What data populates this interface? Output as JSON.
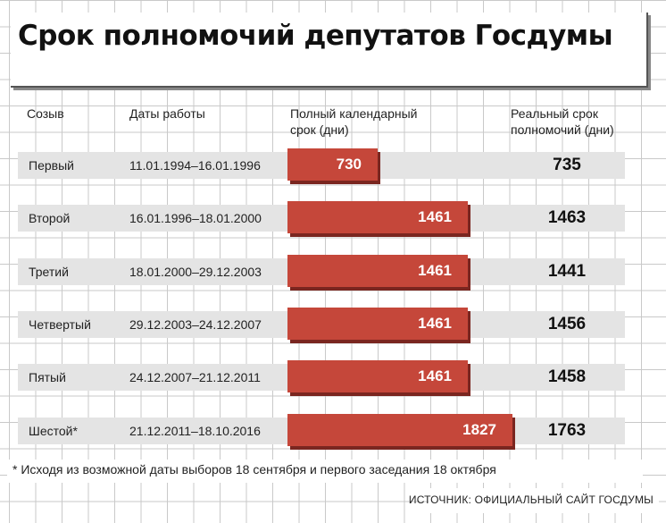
{
  "title": "Срок полномочий депутатов Госдумы",
  "headers": {
    "convocation": "Созыв",
    "dates": "Даты работы",
    "calendar_line1": "Полный календарный",
    "calendar_line2": "срок (дни)",
    "real_line1": "Реальный срок",
    "real_line2": "полномочий (дни)"
  },
  "rows": [
    {
      "convocation": "Первый",
      "dates": "11.01.1994–16.01.1996",
      "calendar_label": "730",
      "real_label": "735"
    },
    {
      "convocation": "Второй",
      "dates": "16.01.1996–18.01.2000",
      "calendar_label": "1461",
      "real_label": "1463"
    },
    {
      "convocation": "Третий",
      "dates": "18.01.2000–29.12.2003",
      "calendar_label": "1461",
      "real_label": "1441"
    },
    {
      "convocation": "Четвертый",
      "dates": "29.12.2003–24.12.2007",
      "calendar_label": "1461",
      "real_label": "1456"
    },
    {
      "convocation": "Пятый",
      "dates": "24.12.2007–21.12.2011",
      "calendar_label": "1461",
      "real_label": "1458"
    },
    {
      "convocation": "Шестой*",
      "dates": "21.12.2011–18.10.2016",
      "calendar_label": "1827",
      "real_label": "1763"
    }
  ],
  "footnote": "* Исходя из возможной даты выборов 18 сентября и первого заседания 18 октября",
  "source": "ИСТОЧНИК: ОФИЦИАЛЬНЫЙ САЙТ ГОСДУМЫ",
  "colors": {
    "bar": "#c5473a",
    "row_bg": "#e4e4e4",
    "grid": "#c9c9c9"
  },
  "chart_data": {
    "type": "bar",
    "categories": [
      "Первый",
      "Второй",
      "Третий",
      "Четвертый",
      "Пятый",
      "Шестой*"
    ],
    "series": [
      {
        "name": "Полный календарный срок (дни)",
        "values": [
          730,
          1461,
          1461,
          1461,
          1461,
          1827
        ]
      },
      {
        "name": "Реальный срок полномочий (дни)",
        "values": [
          735,
          1463,
          1441,
          1456,
          1458,
          1763
        ]
      }
    ],
    "title": "Срок полномочий депутатов Госдумы",
    "orientation": "horizontal"
  }
}
